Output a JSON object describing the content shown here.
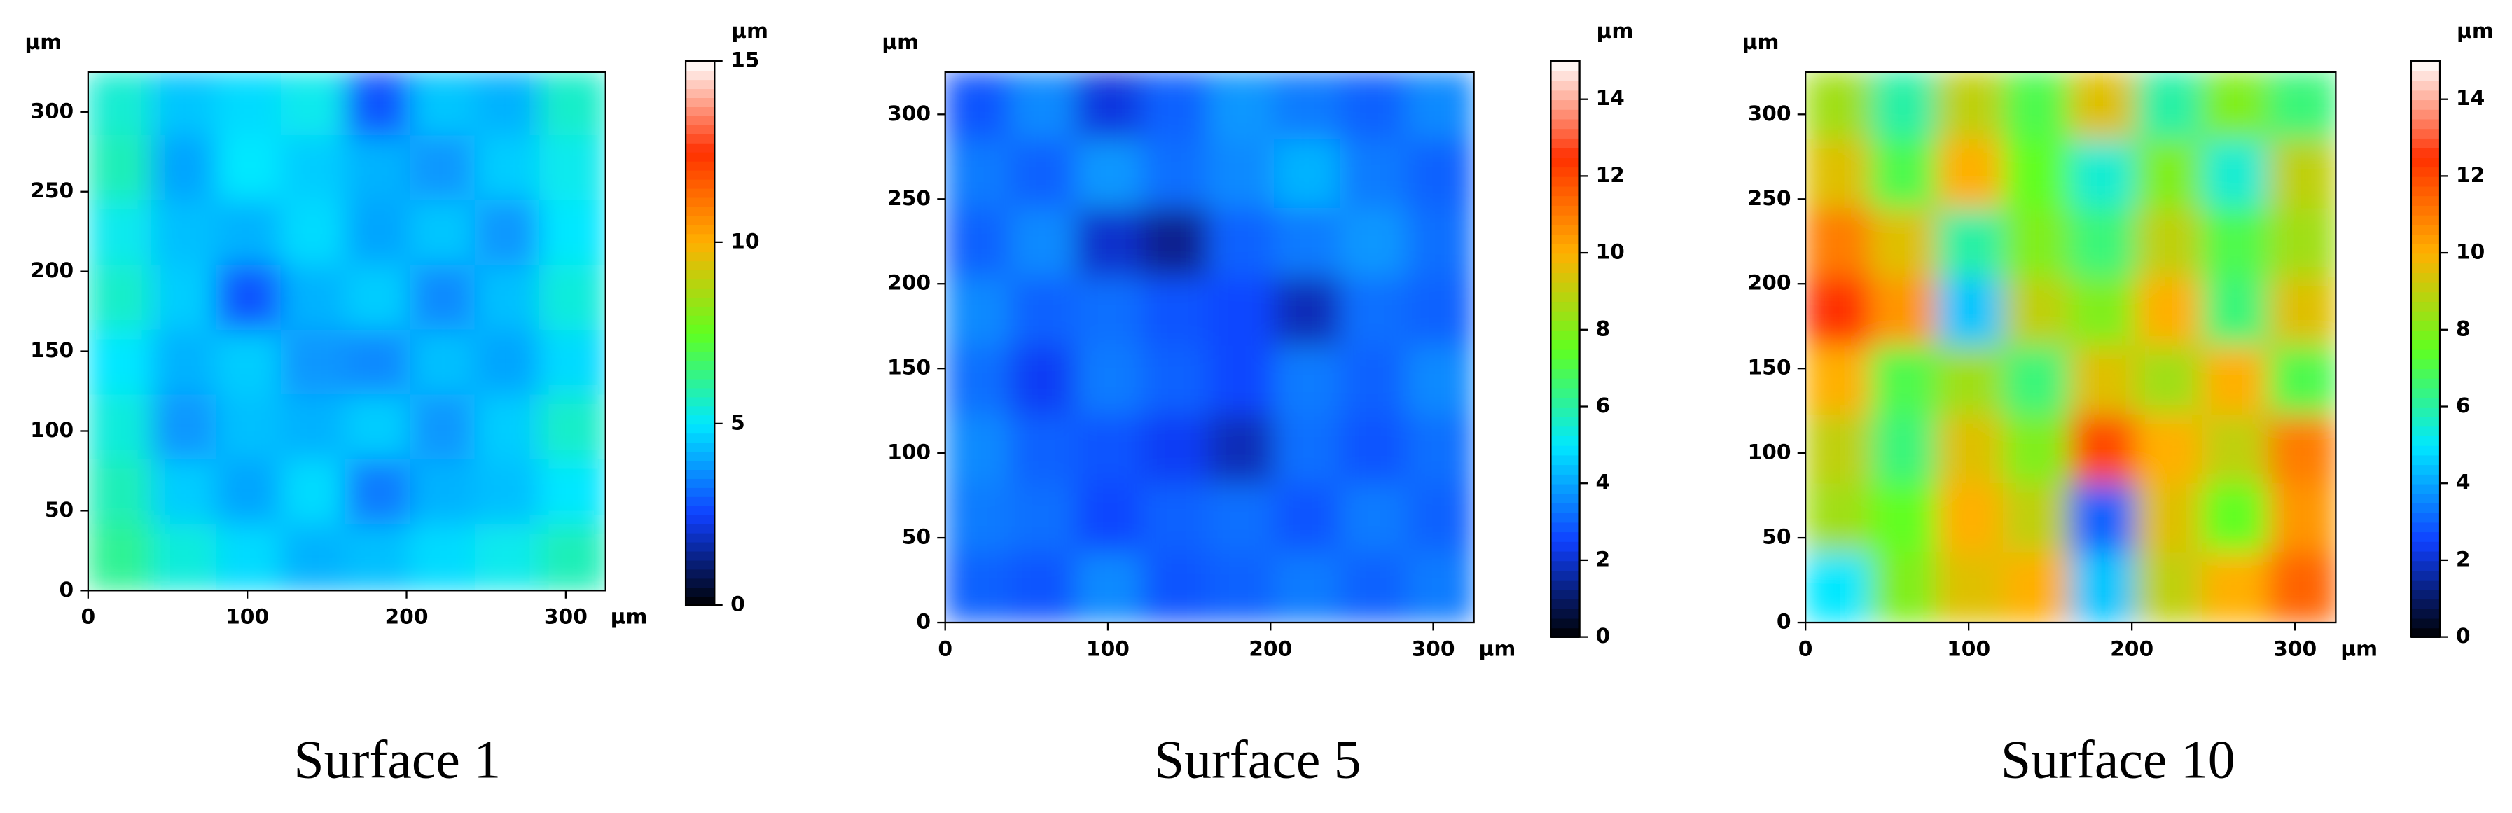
{
  "chart_data": [
    {
      "type": "heatmap",
      "title": "Surface 1",
      "xlabel": "µm",
      "ylabel": "µm",
      "xlim": [
        0,
        325
      ],
      "ylim": [
        0,
        325
      ],
      "xticks": [
        0,
        100,
        200,
        300
      ],
      "yticks": [
        0,
        50,
        100,
        150,
        200,
        250,
        300
      ],
      "colorbar": {
        "label": "µm",
        "lim": [
          0,
          15
        ],
        "ticks": [
          0,
          5,
          10,
          15
        ]
      },
      "colormap": [
        "#000000",
        "#1040ff",
        "#00e8ff",
        "#60ff20",
        "#ffb000",
        "#ff3000",
        "#ffffff"
      ],
      "z": [
        [
          5.5,
          4.5,
          4.8,
          5.2,
          2.8,
          4.5,
          4.2,
          5.6
        ],
        [
          5.8,
          4.0,
          5.0,
          4.6,
          4.2,
          3.8,
          4.6,
          5.2
        ],
        [
          5.2,
          4.4,
          4.2,
          4.8,
          4.0,
          4.5,
          3.8,
          5.0
        ],
        [
          5.6,
          4.6,
          2.8,
          4.2,
          4.6,
          3.6,
          4.4,
          5.4
        ],
        [
          5.0,
          4.2,
          4.6,
          3.8,
          3.6,
          4.4,
          4.0,
          4.8
        ],
        [
          5.4,
          3.8,
          4.4,
          4.2,
          4.6,
          3.8,
          4.6,
          5.6
        ],
        [
          5.8,
          4.6,
          4.0,
          4.8,
          3.4,
          4.2,
          4.4,
          5.0
        ],
        [
          6.2,
          5.4,
          4.8,
          4.2,
          4.4,
          4.8,
          5.2,
          5.8
        ]
      ]
    },
    {
      "type": "heatmap",
      "title": "Surface 5",
      "xlabel": "µm",
      "ylabel": "µm",
      "xlim": [
        0,
        325
      ],
      "ylim": [
        0,
        325
      ],
      "xticks": [
        0,
        100,
        200,
        300
      ],
      "yticks": [
        0,
        50,
        100,
        150,
        200,
        250,
        300
      ],
      "colorbar": {
        "label": "µm",
        "lim": [
          0,
          15
        ],
        "ticks": [
          0,
          2,
          4,
          6,
          8,
          10,
          12,
          14
        ]
      },
      "colormap": [
        "#000000",
        "#1040ff",
        "#00e8ff",
        "#60ff20",
        "#ffb000",
        "#ff3000",
        "#ffffff"
      ],
      "z": [
        [
          2.8,
          3.6,
          2.2,
          3.0,
          3.8,
          3.4,
          3.0,
          3.6
        ],
        [
          3.4,
          3.0,
          3.8,
          3.2,
          3.6,
          4.2,
          3.4,
          3.0
        ],
        [
          3.0,
          3.6,
          2.0,
          1.4,
          3.0,
          3.4,
          3.8,
          3.2
        ],
        [
          3.6,
          3.0,
          3.2,
          2.8,
          2.6,
          1.8,
          3.2,
          3.0
        ],
        [
          3.2,
          2.4,
          3.4,
          3.0,
          2.6,
          3.4,
          3.0,
          3.6
        ],
        [
          3.6,
          3.0,
          2.8,
          2.4,
          1.8,
          3.2,
          2.8,
          3.2
        ],
        [
          3.4,
          3.2,
          2.6,
          3.0,
          3.2,
          2.8,
          3.4,
          3.0
        ],
        [
          3.0,
          2.8,
          3.6,
          2.8,
          3.0,
          3.4,
          3.0,
          3.4
        ]
      ]
    },
    {
      "type": "heatmap",
      "title": "Surface 10",
      "xlabel": "µm",
      "ylabel": "µm",
      "xlim": [
        0,
        325
      ],
      "ylim": [
        0,
        325
      ],
      "xticks": [
        0,
        100,
        200,
        300
      ],
      "yticks": [
        0,
        50,
        100,
        150,
        200,
        250,
        300
      ],
      "colorbar": {
        "label": "µm",
        "lim": [
          0,
          15
        ],
        "ticks": [
          0,
          2,
          4,
          6,
          8,
          10,
          12,
          14
        ]
      },
      "colormap": [
        "#000000",
        "#1040ff",
        "#00e8ff",
        "#60ff20",
        "#ffb000",
        "#ff3000",
        "#ffffff"
      ],
      "z": [
        [
          8.5,
          6.0,
          9.0,
          7.0,
          9.5,
          6.0,
          8.0,
          6.5
        ],
        [
          9.5,
          7.0,
          10.0,
          7.5,
          5.5,
          8.0,
          5.5,
          9.0
        ],
        [
          11.0,
          9.5,
          6.0,
          8.0,
          6.5,
          9.0,
          7.0,
          8.5
        ],
        [
          12.5,
          10.5,
          4.5,
          9.0,
          8.0,
          10.0,
          6.5,
          9.5
        ],
        [
          10.0,
          7.0,
          8.5,
          6.5,
          9.5,
          8.5,
          10.0,
          7.0
        ],
        [
          9.0,
          6.5,
          9.5,
          8.0,
          12.0,
          10.0,
          9.0,
          11.0
        ],
        [
          8.5,
          7.5,
          10.0,
          9.0,
          3.0,
          9.5,
          7.5,
          10.5
        ],
        [
          5.0,
          8.0,
          9.5,
          10.0,
          4.5,
          9.0,
          10.0,
          11.5
        ]
      ]
    }
  ]
}
